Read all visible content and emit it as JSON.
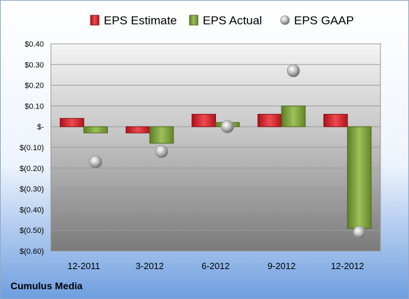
{
  "footer": {
    "company": "Cumulus Media"
  },
  "chart_data": {
    "type": "bar",
    "categories": [
      "12-2011",
      "3-2012",
      "6-2012",
      "9-2012",
      "12-2012"
    ],
    "series": [
      {
        "name": "EPS Estimate",
        "kind": "bar",
        "color": "#d0222a",
        "values": [
          0.04,
          -0.03,
          0.06,
          0.06,
          0.06
        ]
      },
      {
        "name": "EPS Actual",
        "kind": "bar",
        "color": "#7fa13a",
        "values": [
          -0.03,
          -0.08,
          0.02,
          0.1,
          -0.49
        ]
      },
      {
        "name": "EPS GAAP",
        "kind": "marker",
        "color": "#b8b8b8",
        "values": [
          -0.17,
          -0.12,
          0.0,
          0.27,
          -0.51
        ]
      }
    ],
    "ylim": [
      -0.6,
      0.4
    ],
    "y_ticks": [
      0.4,
      0.3,
      0.2,
      0.1,
      0,
      -0.1,
      -0.2,
      -0.3,
      -0.4,
      -0.5,
      -0.6
    ],
    "y_tick_labels": [
      "$0.40",
      "$0.30",
      "$0.20",
      "$0.10",
      "$-",
      "$(0.10)",
      "$(0.20)",
      "$(0.30)",
      "$(0.40)",
      "$(0.50)",
      "$(0.60)"
    ],
    "legend_position": "top",
    "grid": true
  }
}
